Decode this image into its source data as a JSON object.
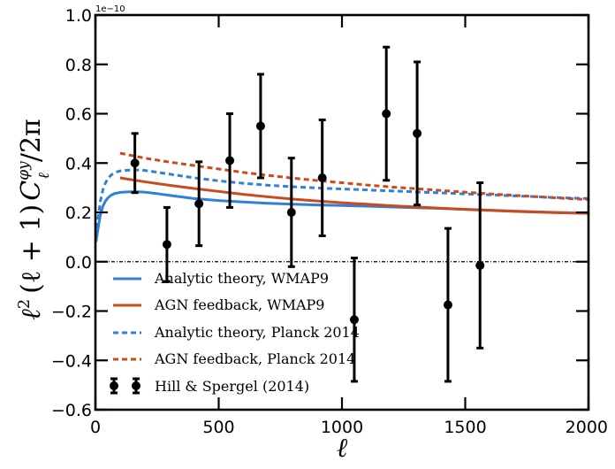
{
  "chart_data": {
    "type": "line",
    "title": "",
    "xlabel": "ℓ",
    "ylabel_parts": {
      "l": "ℓ",
      "sq": "2",
      "paren": "(ℓ + 1)",
      "C": "C",
      "sup": "φy",
      "sub": "ℓ",
      "over": "/2π"
    },
    "offset_text": "1e−10",
    "xlim": [
      0,
      2000
    ],
    "ylim": [
      -0.6,
      1.0
    ],
    "xticks": [
      0,
      500,
      1000,
      1500,
      2000
    ],
    "xtick_labels": [
      "0",
      "500",
      "1000",
      "1500",
      "2000"
    ],
    "yticks": [
      -0.6,
      -0.4,
      -0.2,
      0.0,
      0.2,
      0.4,
      0.6,
      0.8,
      1.0
    ],
    "ytick_labels": [
      "−0.6",
      "−0.4",
      "−0.2",
      "0.0",
      "0.2",
      "0.4",
      "0.6",
      "0.8",
      "1.0"
    ],
    "zero_line": true,
    "legend_position": "lower-left",
    "series": [
      {
        "name": "Analytic theory, WMAP9",
        "color": "#2f80d8",
        "style": "solid",
        "x": [
          2,
          10,
          20,
          30,
          40,
          50,
          60,
          70,
          80,
          100,
          130,
          160,
          200,
          250,
          300,
          400,
          500,
          600,
          700,
          800,
          900,
          1000,
          1100,
          1200,
          1300,
          1400,
          1500,
          1600,
          1700,
          1800,
          1900,
          2000
        ],
        "y": [
          0.08,
          0.13,
          0.19,
          0.224,
          0.245,
          0.258,
          0.267,
          0.273,
          0.277,
          0.281,
          0.283,
          0.284,
          0.282,
          0.276,
          0.269,
          0.256,
          0.248,
          0.242,
          0.237,
          0.233,
          0.23,
          0.228,
          0.225,
          0.222,
          0.219,
          0.216,
          0.212,
          0.209,
          0.205,
          0.202,
          0.199,
          0.196
        ]
      },
      {
        "name": "AGN feedback, WMAP9",
        "color": "#cc4a1c",
        "style": "solid",
        "x": [
          100,
          200,
          300,
          400,
          500,
          600,
          700,
          800,
          900,
          1000,
          1100,
          1200,
          1300,
          1400,
          1500,
          1600,
          1700,
          1800,
          1900,
          2000
        ],
        "y": [
          0.34,
          0.324,
          0.31,
          0.297,
          0.285,
          0.273,
          0.263,
          0.254,
          0.246,
          0.239,
          0.233,
          0.227,
          0.222,
          0.217,
          0.212,
          0.208,
          0.204,
          0.201,
          0.198,
          0.196
        ]
      },
      {
        "name": "Analytic theory, Planck 2014",
        "color": "#2f80d8",
        "style": "dashed",
        "x": [
          2,
          10,
          20,
          30,
          40,
          50,
          60,
          70,
          80,
          100,
          130,
          160,
          200,
          250,
          300,
          400,
          500,
          600,
          700,
          800,
          900,
          1000,
          1100,
          1200,
          1300,
          1400,
          1500,
          1600,
          1700,
          1800,
          1900,
          2000
        ],
        "y": [
          0.1,
          0.17,
          0.245,
          0.29,
          0.318,
          0.336,
          0.348,
          0.356,
          0.362,
          0.368,
          0.371,
          0.372,
          0.37,
          0.363,
          0.355,
          0.34,
          0.328,
          0.318,
          0.31,
          0.304,
          0.299,
          0.295,
          0.291,
          0.287,
          0.283,
          0.279,
          0.275,
          0.271,
          0.267,
          0.263,
          0.259,
          0.256
        ]
      },
      {
        "name": "AGN feedback, Planck 2014",
        "color": "#cc4a1c",
        "style": "dashed",
        "x": [
          100,
          200,
          300,
          400,
          500,
          600,
          700,
          800,
          900,
          1000,
          1100,
          1200,
          1300,
          1400,
          1500,
          1600,
          1700,
          1800,
          1900,
          2000
        ],
        "y": [
          0.44,
          0.42,
          0.404,
          0.39,
          0.376,
          0.362,
          0.35,
          0.339,
          0.329,
          0.32,
          0.311,
          0.303,
          0.296,
          0.289,
          0.282,
          0.275,
          0.269,
          0.263,
          0.257,
          0.252
        ]
      }
    ],
    "points": {
      "name": "Hill & Spergel (2014)",
      "color": "#000000",
      "x": [
        160,
        290,
        420,
        545,
        670,
        795,
        920,
        1050,
        1180,
        1305,
        1430,
        1560
      ],
      "y": [
        0.4,
        0.07,
        0.235,
        0.41,
        0.55,
        0.2,
        0.34,
        -0.235,
        0.6,
        0.52,
        -0.175,
        -0.015
      ],
      "yerr": [
        0.12,
        0.15,
        0.17,
        0.19,
        0.21,
        0.22,
        0.235,
        0.25,
        0.27,
        0.29,
        0.31,
        0.335
      ]
    }
  }
}
